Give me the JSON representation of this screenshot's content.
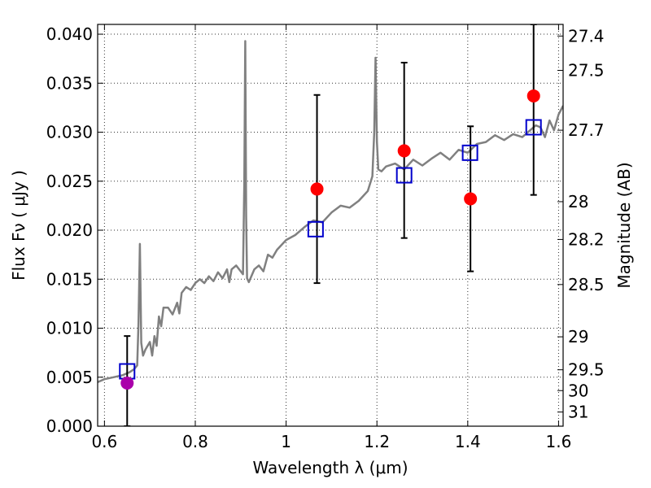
{
  "chart_data": {
    "type": "scatter",
    "title": "",
    "xlabel": "Wavelength  λ (μm)",
    "ylabel": "Flux  Fν  ( μJy )",
    "ylabel_right": "Magnitude (AB)",
    "xlim": [
      0.585,
      1.61
    ],
    "ylim": [
      0.0,
      0.041
    ],
    "grid": true,
    "x_ticks": [
      0.6,
      0.8,
      1.0,
      1.2,
      1.4,
      1.6
    ],
    "x_tick_labels": [
      "0.6",
      "0.8",
      "1",
      "1.2",
      "1.4",
      "1.6"
    ],
    "y_ticks": [
      0.0,
      0.005,
      0.01,
      0.015,
      0.02,
      0.025,
      0.03,
      0.035,
      0.04
    ],
    "y_tick_labels": [
      "0.000",
      "0.005",
      "0.010",
      "0.015",
      "0.020",
      "0.025",
      "0.030",
      "0.035",
      "0.040"
    ],
    "right_ticks": [
      27.4,
      27.5,
      27.7,
      28,
      28.2,
      28.5,
      29,
      29.5,
      30,
      31
    ],
    "right_tick_labels": [
      "27.4",
      "27.5",
      "27.7",
      "28",
      "28.2",
      "28.5",
      "29",
      "29.5",
      "30",
      "31"
    ],
    "series": [
      {
        "type": "line",
        "color": "#808080",
        "x": [
          0.585,
          0.6,
          0.62,
          0.64,
          0.655,
          0.665,
          0.672,
          0.675,
          0.678,
          0.681,
          0.685,
          0.69,
          0.7,
          0.705,
          0.71,
          0.715,
          0.72,
          0.725,
          0.73,
          0.74,
          0.75,
          0.76,
          0.765,
          0.77,
          0.78,
          0.79,
          0.8,
          0.81,
          0.82,
          0.83,
          0.84,
          0.85,
          0.86,
          0.87,
          0.875,
          0.88,
          0.89,
          0.9,
          0.905,
          0.908,
          0.91,
          0.912,
          0.914,
          0.918,
          0.93,
          0.94,
          0.95,
          0.96,
          0.97,
          0.98,
          0.99,
          1.0,
          1.02,
          1.04,
          1.06,
          1.08,
          1.1,
          1.12,
          1.14,
          1.16,
          1.18,
          1.19,
          1.194,
          1.197,
          1.2,
          1.203,
          1.21,
          1.22,
          1.24,
          1.26,
          1.28,
          1.3,
          1.32,
          1.34,
          1.36,
          1.38,
          1.4,
          1.42,
          1.44,
          1.46,
          1.48,
          1.5,
          1.52,
          1.54,
          1.55,
          1.56,
          1.57,
          1.58,
          1.59,
          1.6,
          1.61
        ],
        "y": [
          0.0045,
          0.0048,
          0.005,
          0.0052,
          0.0055,
          0.0058,
          0.0062,
          0.0105,
          0.0186,
          0.0085,
          0.0072,
          0.0078,
          0.0086,
          0.0072,
          0.0092,
          0.0082,
          0.0112,
          0.0102,
          0.0121,
          0.0121,
          0.0114,
          0.0126,
          0.0115,
          0.0136,
          0.0142,
          0.0139,
          0.0146,
          0.015,
          0.0146,
          0.0153,
          0.0148,
          0.0157,
          0.0151,
          0.016,
          0.0147,
          0.016,
          0.0164,
          0.0158,
          0.0155,
          0.0247,
          0.0393,
          0.0215,
          0.0151,
          0.0147,
          0.016,
          0.0164,
          0.0158,
          0.0175,
          0.0172,
          0.018,
          0.0185,
          0.019,
          0.0195,
          0.0203,
          0.021,
          0.0208,
          0.0218,
          0.0225,
          0.0223,
          0.023,
          0.024,
          0.0255,
          0.03,
          0.0376,
          0.029,
          0.0262,
          0.026,
          0.0265,
          0.0268,
          0.0262,
          0.0272,
          0.0266,
          0.0273,
          0.0279,
          0.0272,
          0.0282,
          0.0279,
          0.0288,
          0.029,
          0.0297,
          0.0292,
          0.0298,
          0.0295,
          0.0303,
          0.0307,
          0.0305,
          0.0295,
          0.0312,
          0.0302,
          0.0318,
          0.0327
        ]
      },
      {
        "type": "scatter",
        "marker": "square-open",
        "color": "#0000cc",
        "x": [
          0.65,
          1.065,
          1.26,
          1.405,
          1.545
        ],
        "y": [
          0.0056,
          0.0201,
          0.0256,
          0.0279,
          0.0305
        ]
      },
      {
        "type": "scatter",
        "marker": "circle",
        "color": "#ff0000",
        "x": [
          1.068,
          1.26,
          1.406,
          1.545
        ],
        "y": [
          0.0242,
          0.0281,
          0.0232,
          0.0337
        ]
      },
      {
        "type": "scatter",
        "marker": "circle",
        "color": "#aa00aa",
        "x": [
          0.65
        ],
        "y": [
          0.0044
        ]
      },
      {
        "type": "errorbar",
        "color": "#000000",
        "x": [
          0.65,
          1.068,
          1.26,
          1.406,
          1.545
        ],
        "y_low": [
          0.0,
          0.0146,
          0.0192,
          0.0158,
          0.0236
        ],
        "y_high": [
          0.0092,
          0.0338,
          0.0371,
          0.0306,
          0.041
        ]
      }
    ]
  }
}
